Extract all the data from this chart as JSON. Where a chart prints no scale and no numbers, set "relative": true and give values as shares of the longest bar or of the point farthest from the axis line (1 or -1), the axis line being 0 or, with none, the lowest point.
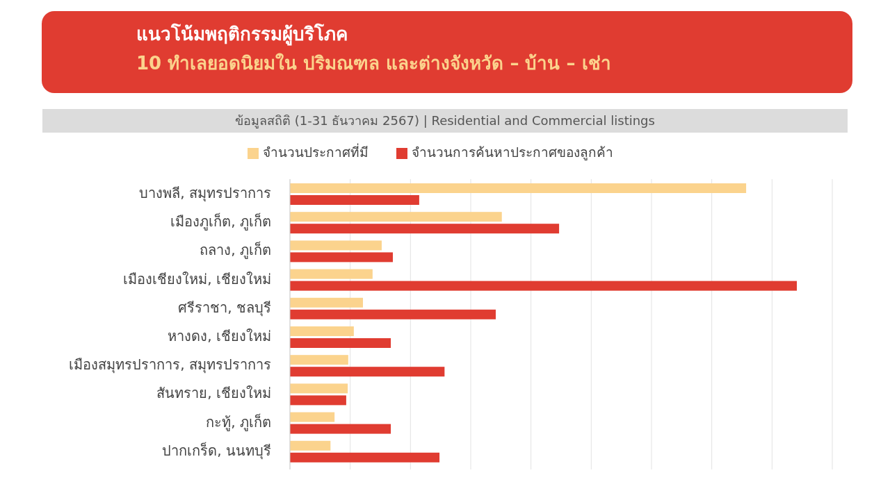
{
  "chart_data": {
    "type": "bar",
    "orientation": "horizontal",
    "relative": true,
    "title": "แนวโน้มพฤติกรรมผู้บริโภค",
    "subtitle": "10 ทำเลยอดนิยมใน ปริมณฑล และต่างจังหวัด – บ้าน – เช่า",
    "annotations": [
      "ข้อมูลสถิติ (1-31 ธันวาคม 2567) | Residential and Commercial listings"
    ],
    "categories": [
      "บางพลี, สมุทรปราการ",
      "เมืองภูเก็ต, ภูเก็ต",
      "ถลาง, ภูเก็ต",
      "เมืองเชียงใหม่, เชียงใหม่",
      "ศรีราชา, ชลบุรี",
      "หางดง, เชียงใหม่",
      "เมืองสมุทรปราการ, สมุทรปราการ",
      "สันทราย, เชียงใหม่",
      "กะทู้, ภูเก็ต",
      "ปากเกร็ด, นนทบุรี"
    ],
    "series": [
      {
        "name": "จำนวนประกาศที่มี",
        "color": "#fbd38d",
        "values": [
          0.9,
          0.418,
          0.181,
          0.163,
          0.144,
          0.126,
          0.115,
          0.114,
          0.088,
          0.08
        ]
      },
      {
        "name": "จำนวนการค้นหาประกาศของลูกค้า",
        "color": "#e03c31",
        "values": [
          0.255,
          0.531,
          0.203,
          1.0,
          0.406,
          0.199,
          0.305,
          0.111,
          0.199,
          0.295
        ]
      }
    ],
    "legend": "top",
    "grid": "x"
  }
}
